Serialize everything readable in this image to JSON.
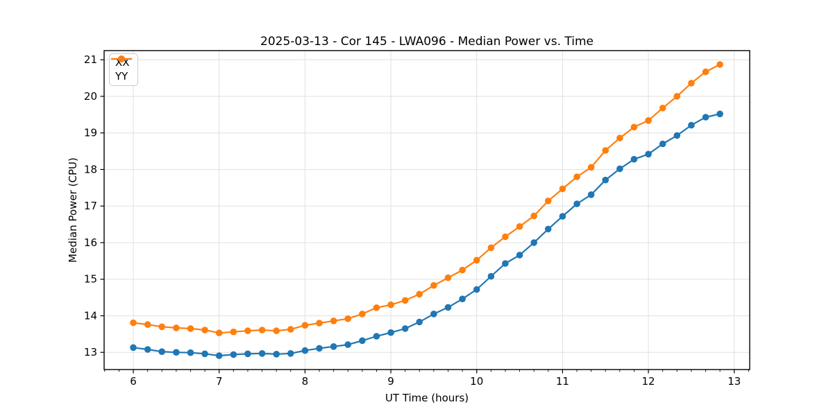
{
  "figure": {
    "title": "2025-03-13 - Cor 145 - LWA096 - Median Power vs. Time",
    "xlabel": "UT Time (hours)",
    "ylabel": "Median Power (CPU)"
  },
  "legend": {
    "position": "upper left",
    "entries": [
      {
        "label": "XX",
        "color": "#1f77b4"
      },
      {
        "label": "YY",
        "color": "#ff7f0e"
      }
    ]
  },
  "chart_data": {
    "type": "line",
    "title": "2025-03-13 - Cor 145 - LWA096 - Median Power vs. Time",
    "xlabel": "UT Time (hours)",
    "ylabel": "Median Power (CPU)",
    "xlim": [
      5.66,
      13.18
    ],
    "ylim": [
      12.53,
      21.25
    ],
    "xticks": [
      6,
      7,
      8,
      9,
      10,
      11,
      12,
      13
    ],
    "yticks": [
      13,
      14,
      15,
      16,
      17,
      18,
      19,
      20,
      21
    ],
    "x_minor_step": 0.1666667,
    "grid": true,
    "legend_position": "upper left",
    "marker": "circle",
    "x": [
      6.0,
      6.167,
      6.333,
      6.5,
      6.667,
      6.833,
      7.0,
      7.167,
      7.333,
      7.5,
      7.667,
      7.833,
      8.0,
      8.167,
      8.333,
      8.5,
      8.667,
      8.833,
      9.0,
      9.167,
      9.333,
      9.5,
      9.667,
      9.833,
      10.0,
      10.167,
      10.333,
      10.5,
      10.667,
      10.833,
      11.0,
      11.167,
      11.333,
      11.5,
      11.667,
      11.833,
      12.0,
      12.167,
      12.333,
      12.5,
      12.667,
      12.833
    ],
    "series": [
      {
        "name": "XX",
        "color": "#1f77b4",
        "values": [
          13.13,
          13.08,
          13.02,
          13.0,
          12.99,
          12.96,
          12.91,
          12.94,
          12.96,
          12.97,
          12.95,
          12.97,
          13.05,
          13.11,
          13.16,
          13.21,
          13.32,
          13.44,
          13.54,
          13.65,
          13.83,
          14.05,
          14.23,
          14.46,
          14.72,
          15.08,
          15.43,
          15.66,
          16.0,
          16.37,
          16.72,
          17.06,
          17.31,
          17.71,
          18.02,
          18.28,
          18.42,
          18.7,
          18.93,
          19.21,
          19.43,
          19.52
        ]
      },
      {
        "name": "YY",
        "color": "#ff7f0e",
        "values": [
          13.81,
          13.76,
          13.7,
          13.67,
          13.65,
          13.61,
          13.53,
          13.56,
          13.59,
          13.61,
          13.59,
          13.63,
          13.74,
          13.8,
          13.86,
          13.92,
          14.05,
          14.22,
          14.3,
          14.42,
          14.59,
          14.83,
          15.04,
          15.25,
          15.52,
          15.86,
          16.16,
          16.44,
          16.73,
          17.14,
          17.47,
          17.8,
          18.06,
          18.52,
          18.86,
          19.16,
          19.34,
          19.68,
          20.0,
          20.36,
          20.67,
          20.87
        ]
      }
    ],
    "colors": {
      "grid": "#e0e0e0",
      "spine": "#000000",
      "tick": "#000000",
      "text": "#000000",
      "background": "#ffffff"
    }
  }
}
